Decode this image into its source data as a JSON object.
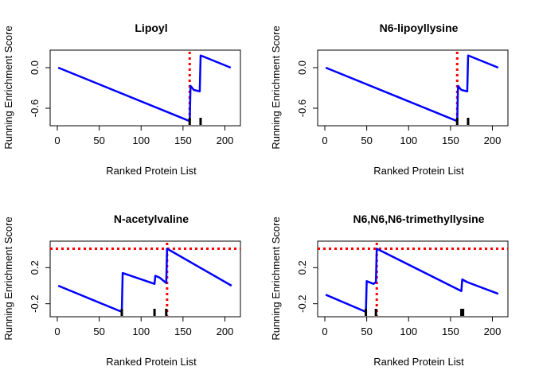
{
  "chart_data": [
    {
      "type": "line",
      "title": "Lipoyl",
      "xlabel": "Ranked Protein List",
      "ylabel": "Running Enrichment Score",
      "xlim": [
        0,
        210
      ],
      "ylim": [
        -0.8,
        0.2
      ],
      "xticks": [
        0,
        50,
        100,
        150,
        200
      ],
      "xtick_labels": [
        "0",
        "50",
        "100",
        "150",
        "200"
      ],
      "yticks": [
        0.0,
        -0.6
      ],
      "ytick_labels": [
        "0.0",
        "-0.6"
      ],
      "series": [
        {
          "color": "#0000FF",
          "x": [
            1,
            158,
            159,
            163,
            170,
            171,
            175,
            207
          ],
          "y": [
            0.0,
            -0.79,
            -0.27,
            -0.33,
            -0.35,
            0.18,
            0.16,
            0.0
          ]
        }
      ],
      "hits": [
        158,
        171
      ],
      "vline": {
        "x": 158,
        "color": "#FF0000"
      },
      "hline": null
    },
    {
      "type": "line",
      "title": "N6-lipoyllysine",
      "xlabel": "Ranked Protein List",
      "ylabel": "Running Enrichment Score",
      "xlim": [
        0,
        210
      ],
      "ylim": [
        -0.8,
        0.2
      ],
      "xticks": [
        0,
        50,
        100,
        150,
        200
      ],
      "xtick_labels": [
        "0",
        "50",
        "100",
        "150",
        "200"
      ],
      "yticks": [
        0.0,
        -0.6
      ],
      "ytick_labels": [
        "0.0",
        "-0.6"
      ],
      "series": [
        {
          "color": "#0000FF",
          "x": [
            1,
            158,
            159,
            163,
            170,
            171,
            175,
            207
          ],
          "y": [
            0.0,
            -0.79,
            -0.27,
            -0.33,
            -0.35,
            0.18,
            0.16,
            0.0
          ]
        }
      ],
      "hits": [
        158,
        171
      ],
      "vline": {
        "x": 158,
        "color": "#FF0000"
      },
      "hline": null
    },
    {
      "type": "line",
      "title": "N-acetylvaline",
      "xlabel": "Ranked Protein List",
      "ylabel": "Running Enrichment Score",
      "xlim": [
        0,
        210
      ],
      "ylim": [
        -0.3,
        0.45
      ],
      "xticks": [
        0,
        50,
        100,
        150,
        200
      ],
      "xtick_labels": [
        "0",
        "50",
        "100",
        "150",
        "200"
      ],
      "yticks": [
        0.2,
        -0.2
      ],
      "ytick_labels": [
        "0.2",
        "-0.2"
      ],
      "series": [
        {
          "color": "#0000FF",
          "x": [
            1,
            77,
            78,
            116,
            117,
            122,
            130,
            131,
            208
          ],
          "y": [
            0.0,
            -0.29,
            0.14,
            0.02,
            0.11,
            0.09,
            0.03,
            0.41,
            0.0
          ]
        }
      ],
      "hits": [
        77,
        116,
        130
      ],
      "vline": {
        "x": 131,
        "color": "#FF0000"
      },
      "hline": {
        "y": 0.41,
        "color": "#FF0000"
      }
    },
    {
      "type": "line",
      "title": "N6,N6,N6-trimethyllysine",
      "xlabel": "Ranked Protein List",
      "ylabel": "Running Enrichment Score",
      "xlim": [
        0,
        210
      ],
      "ylim": [
        -0.3,
        0.45
      ],
      "xticks": [
        0,
        50,
        100,
        150,
        200
      ],
      "xtick_labels": [
        "0",
        "50",
        "100",
        "150",
        "200"
      ],
      "yticks": [
        0.2,
        -0.2
      ],
      "ytick_labels": [
        "0.2",
        "-0.2"
      ],
      "series": [
        {
          "color": "#0000FF",
          "x": [
            1,
            49,
            50,
            58,
            61,
            62,
            163,
            164,
            170,
            207
          ],
          "y": [
            -0.1,
            -0.29,
            0.05,
            0.02,
            0.04,
            0.41,
            -0.06,
            0.07,
            0.04,
            -0.09
          ]
        }
      ],
      "hits": [
        49,
        61,
        163,
        164,
        165
      ],
      "vline": {
        "x": 62,
        "color": "#FF0000"
      },
      "hline": {
        "y": 0.41,
        "color": "#FF0000"
      }
    }
  ]
}
